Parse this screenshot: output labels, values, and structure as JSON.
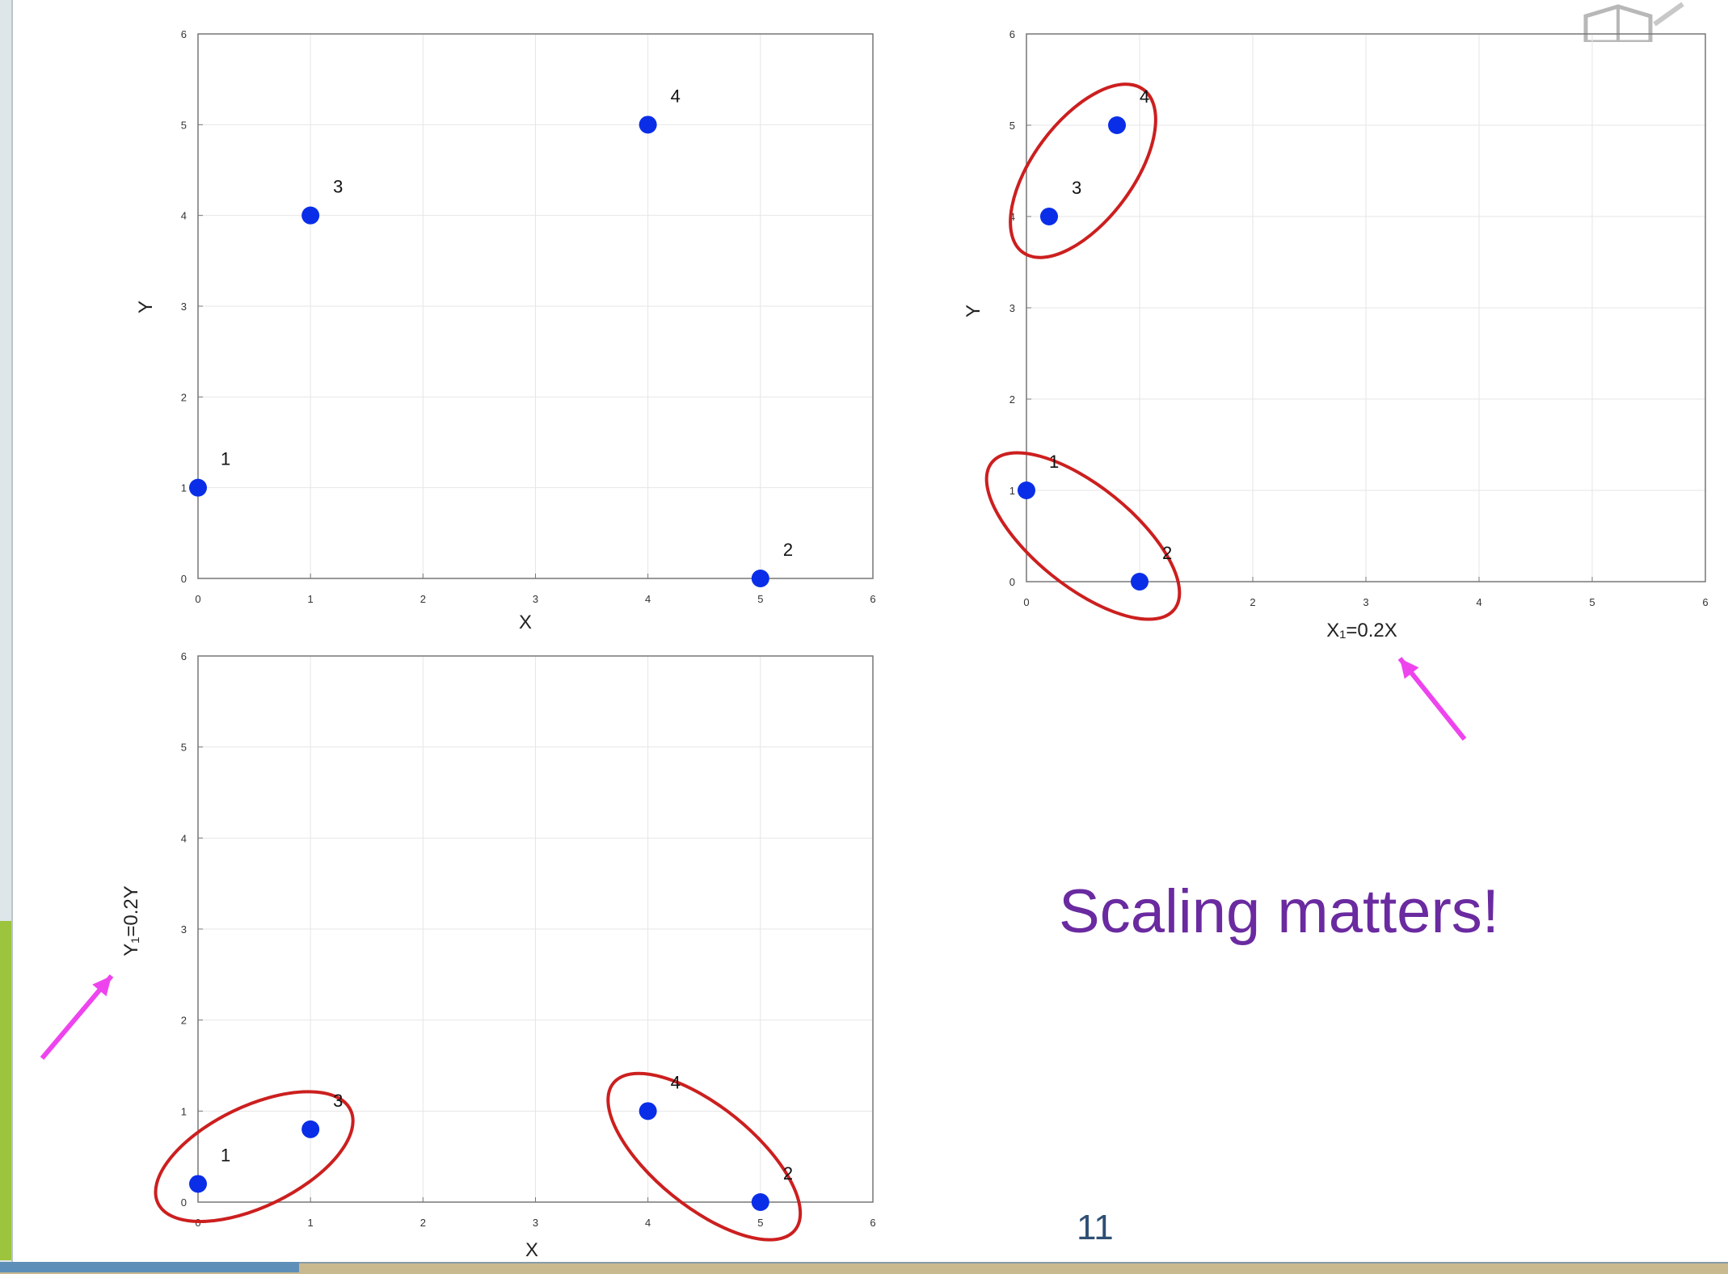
{
  "slide": {
    "headline": "Scaling matters!",
    "page_number": "11"
  },
  "chart_data": [
    {
      "type": "scatter",
      "xlabel": "X",
      "ylabel": "Y",
      "xlim": [
        0,
        6
      ],
      "ylim": [
        0,
        6
      ],
      "x_ticks": [
        "0",
        "1",
        "2",
        "3",
        "4",
        "5",
        "6"
      ],
      "y_ticks": [
        "0",
        "1",
        "2",
        "3",
        "4",
        "5",
        "6"
      ],
      "grid": true,
      "points": [
        {
          "label": "1",
          "x": 0,
          "y": 1
        },
        {
          "label": "2",
          "x": 5,
          "y": 0
        },
        {
          "label": "3",
          "x": 1,
          "y": 4
        },
        {
          "label": "4",
          "x": 4,
          "y": 5
        }
      ],
      "clusters": []
    },
    {
      "type": "scatter",
      "xlabel": "X₁=0.2X",
      "ylabel": "Y",
      "xlim": [
        0,
        6
      ],
      "ylim": [
        0,
        6
      ],
      "x_ticks": [
        "0",
        "",
        "2",
        "3",
        "4",
        "5",
        "6"
      ],
      "y_ticks": [
        "0",
        "1",
        "2",
        "3",
        "4",
        "5",
        "6"
      ],
      "grid": true,
      "points": [
        {
          "label": "1",
          "x": 0,
          "y": 1
        },
        {
          "label": "2",
          "x": 1,
          "y": 0
        },
        {
          "label": "3",
          "x": 0.2,
          "y": 4
        },
        {
          "label": "4",
          "x": 0.8,
          "y": 5
        }
      ],
      "clusters": [
        [
          "3",
          "4"
        ],
        [
          "1",
          "2"
        ]
      ]
    },
    {
      "type": "scatter",
      "xlabel": "X",
      "ylabel": "Y₁=0.2Y",
      "xlim": [
        0,
        6
      ],
      "ylim": [
        0,
        6
      ],
      "x_ticks": [
        "0",
        "1",
        "2",
        "3",
        "4",
        "5",
        "6"
      ],
      "y_ticks": [
        "0",
        "1",
        "2",
        "3",
        "4",
        "5",
        "6"
      ],
      "grid": true,
      "points": [
        {
          "label": "1",
          "x": 0,
          "y": 0.2
        },
        {
          "label": "2",
          "x": 5,
          "y": 0
        },
        {
          "label": "3",
          "x": 1,
          "y": 0.8
        },
        {
          "label": "4",
          "x": 4,
          "y": 1
        }
      ],
      "clusters": [
        [
          "1",
          "3"
        ],
        [
          "4",
          "2"
        ]
      ]
    }
  ]
}
